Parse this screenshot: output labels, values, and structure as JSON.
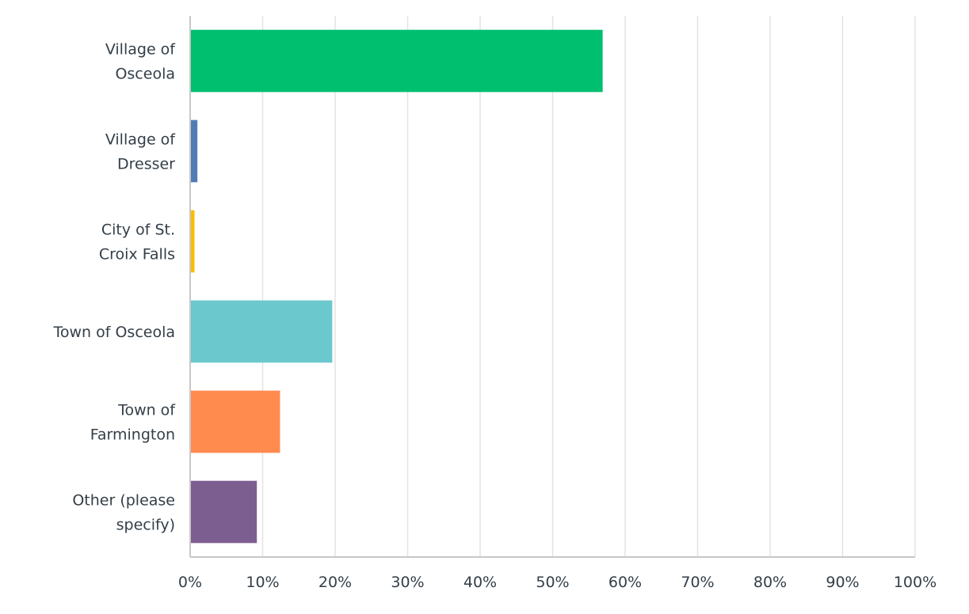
{
  "chart_data": {
    "type": "bar",
    "orientation": "horizontal",
    "categories": [
      [
        "Village of",
        "Osceola"
      ],
      [
        "Village of",
        "Dresser"
      ],
      [
        "City of St.",
        "Croix Falls"
      ],
      [
        "Town of Osceola"
      ],
      [
        "Town of",
        "Farmington"
      ],
      [
        "Other (please",
        "specify)"
      ]
    ],
    "values": [
      56.9,
      1.0,
      0.6,
      19.6,
      12.4,
      9.2
    ],
    "value_unit": "%",
    "colors": [
      "#00bf6f",
      "#507cb6",
      "#f9be00",
      "#6bc8cd",
      "#ff8b4f",
      "#7d5e90"
    ],
    "xlim": [
      0,
      100
    ],
    "x_ticks": [
      "0%",
      "10%",
      "20%",
      "30%",
      "40%",
      "50%",
      "60%",
      "70%",
      "80%",
      "90%",
      "100%"
    ],
    "grid": true,
    "title": "",
    "xlabel": "",
    "ylabel": ""
  }
}
